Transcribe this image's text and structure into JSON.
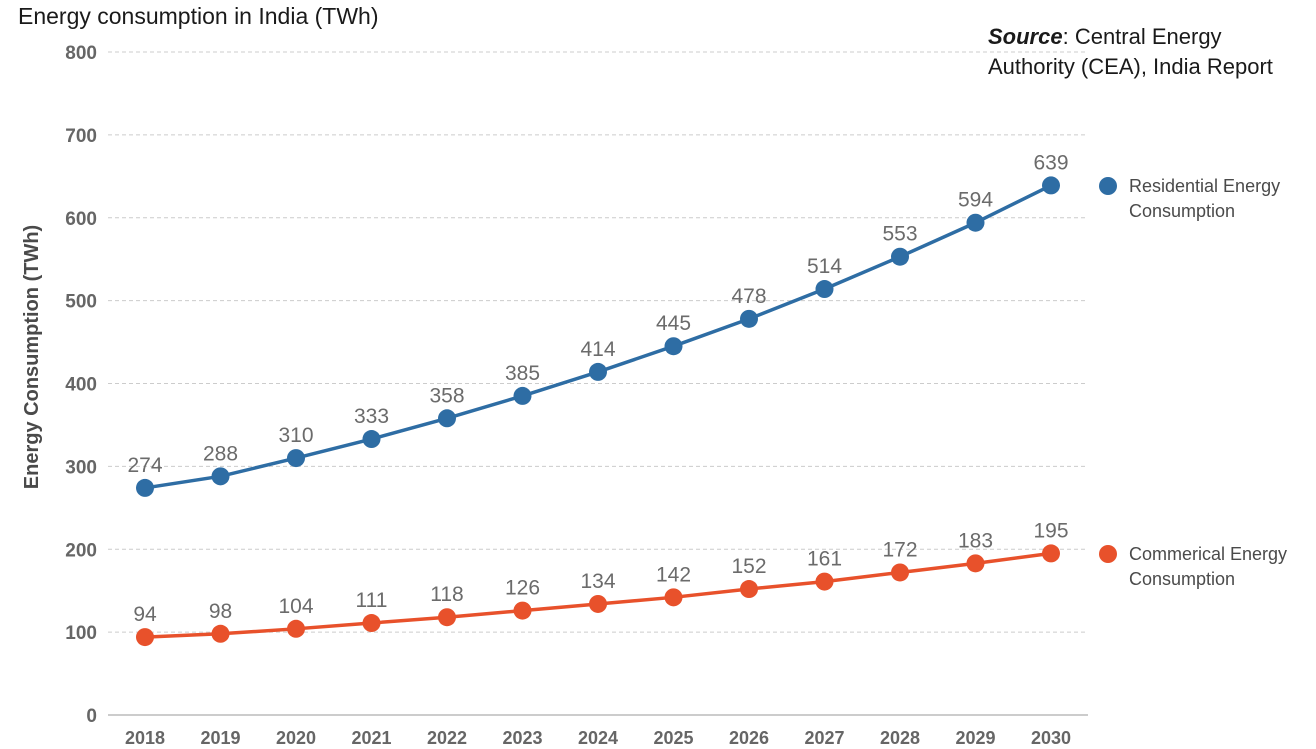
{
  "chart_data": {
    "type": "line",
    "title": "Energy consumption in India (TWh)",
    "source": {
      "label": "Source",
      "line1": ": Central Energy",
      "line2": "Authority (CEA), India Report"
    },
    "ylabel": "Energy Consumption (TWh)",
    "xlabel": "",
    "ylim": [
      0,
      800
    ],
    "yticks": [
      0,
      100,
      200,
      300,
      400,
      500,
      600,
      700,
      800
    ],
    "grid": true,
    "legend_position": "right",
    "categories": [
      "2018",
      "2019",
      "2020",
      "2021",
      "2022",
      "2023",
      "2024",
      "2025",
      "2026",
      "2027",
      "2028",
      "2029",
      "2030"
    ],
    "series": [
      {
        "name_line1": "Residential Energy",
        "name_line2": "Consumption",
        "color": "#2e6da4",
        "values": [
          274,
          288,
          310,
          333,
          358,
          385,
          414,
          445,
          478,
          514,
          553,
          594,
          639
        ]
      },
      {
        "name_line1": "Commerical Energy",
        "name_line2": "Consumption",
        "color": "#e8512b",
        "values": [
          94,
          98,
          104,
          111,
          118,
          126,
          134,
          142,
          152,
          161,
          172,
          183,
          195
        ]
      }
    ]
  }
}
